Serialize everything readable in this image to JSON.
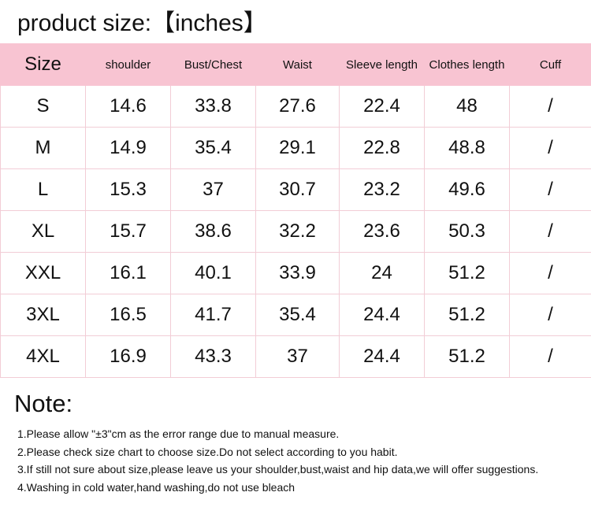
{
  "header": {
    "title": "product size:【inches】"
  },
  "table": {
    "columns": [
      "Size",
      "shoulder",
      "Bust/Chest",
      "Waist",
      "Sleeve length",
      "Clothes length",
      "Cuff"
    ],
    "rows": [
      [
        "S",
        "14.6",
        "33.8",
        "27.6",
        "22.4",
        "48",
        "/"
      ],
      [
        "M",
        "14.9",
        "35.4",
        "29.1",
        "22.8",
        "48.8",
        "/"
      ],
      [
        "L",
        "15.3",
        "37",
        "30.7",
        "23.2",
        "49.6",
        "/"
      ],
      [
        "XL",
        "15.7",
        "38.6",
        "32.2",
        "23.6",
        "50.3",
        "/"
      ],
      [
        "XXL",
        "16.1",
        "40.1",
        "33.9",
        "24",
        "51.2",
        "/"
      ],
      [
        "3XL",
        "16.5",
        "41.7",
        "35.4",
        "24.4",
        "51.2",
        "/"
      ],
      [
        "4XL",
        "16.9",
        "43.3",
        "37",
        "24.4",
        "51.2",
        "/"
      ]
    ]
  },
  "note": {
    "title": "Note:",
    "items": [
      "1.Please allow \"±3\"cm as the error range due to manual measure.",
      "2.Please check size chart to choose size.Do not select according to you habit.",
      "3.If still not sure about size,please leave us your shoulder,bust,waist and hip data,we will offer suggestions.",
      "4.Washing in cold water,hand washing,do not use bleach"
    ]
  }
}
